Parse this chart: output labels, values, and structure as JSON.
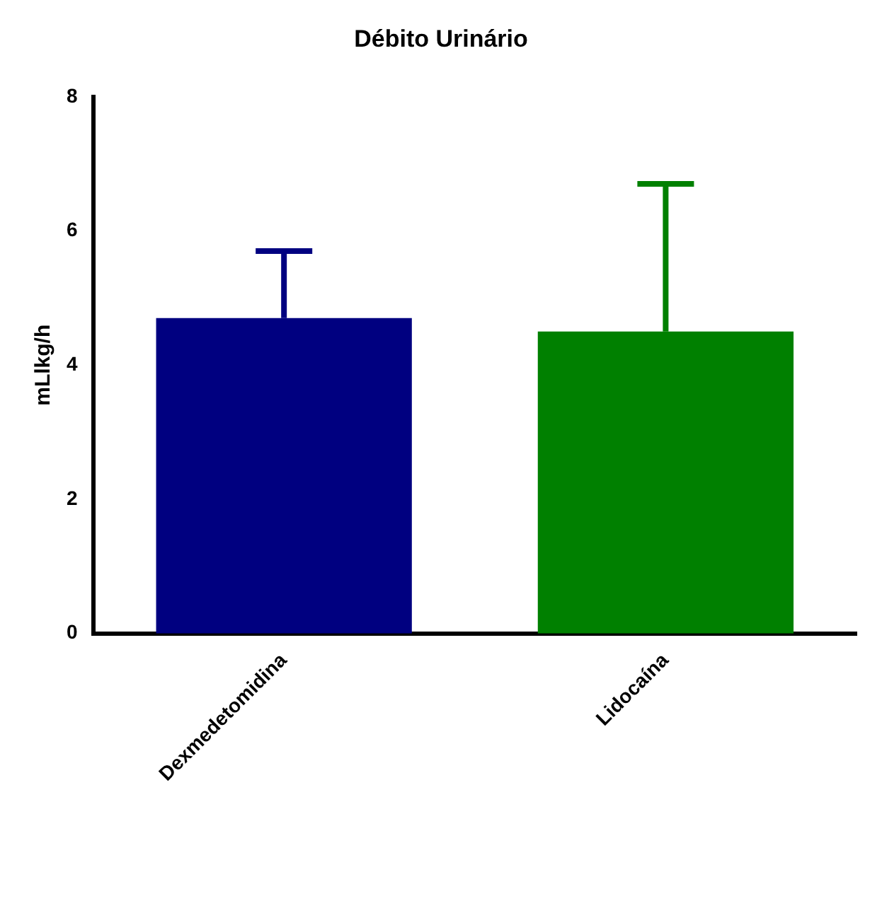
{
  "chart_data": {
    "type": "bar",
    "title": "Débito Urinário",
    "ylabel": "mLlkg/h",
    "categories": [
      "Dexmedetomidina",
      "Lidocaína"
    ],
    "values": [
      4.7,
      4.5
    ],
    "errors": [
      [
        4.7,
        5.7
      ],
      [
        4.5,
        6.7
      ]
    ],
    "colors": [
      "#000080",
      "#008000"
    ],
    "ylim": [
      0,
      8
    ],
    "yticks": [
      0,
      2,
      4,
      6,
      8
    ],
    "grid": false,
    "legend": false
  }
}
